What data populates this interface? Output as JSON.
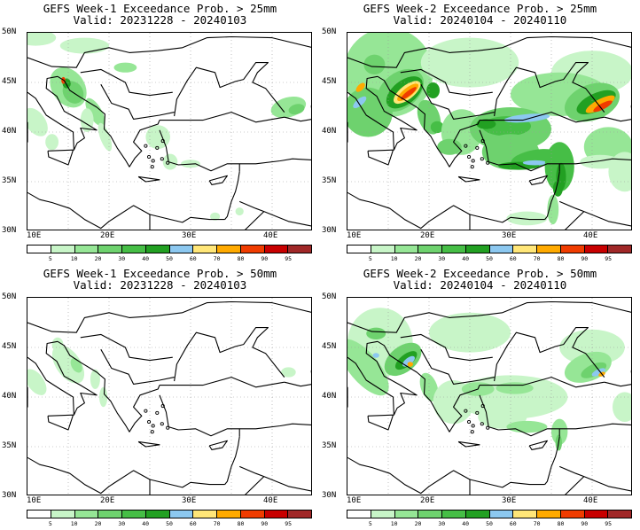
{
  "panels": [
    {
      "line1": "GEFS Week-1 Exceedance Prob. > 25mm",
      "line2": "Valid: 20231228 - 20240103",
      "week": 1,
      "threshold": 25
    },
    {
      "line1": "GEFS Week-2 Exceedance Prob. > 25mm",
      "line2": "Valid: 20240104 - 20240110",
      "week": 2,
      "threshold": 25
    },
    {
      "line1": "GEFS Week-1 Exceedance Prob. > 50mm",
      "line2": "Valid: 20231228 - 20240103",
      "week": 1,
      "threshold": 50
    },
    {
      "line1": "GEFS Week-2 Exceedance Prob. > 50mm",
      "line2": "Valid: 20240104 - 20240110",
      "week": 2,
      "threshold": 50
    }
  ],
  "axes": {
    "y_ticks": [
      "50N",
      "45N",
      "40N",
      "35N",
      "30N"
    ],
    "x_ticks": [
      "10E",
      "20E",
      "30E",
      "40E"
    ]
  },
  "colorbar": {
    "labels": [
      "5",
      "10",
      "20",
      "30",
      "40",
      "50",
      "60",
      "70",
      "80",
      "90",
      "95"
    ],
    "colors": [
      "#ffffff",
      "#c8f5c8",
      "#96e696",
      "#6ed26e",
      "#46be46",
      "#22a022",
      "#8cc8f0",
      "#ffe678",
      "#ffaa00",
      "#f03c00",
      "#c80000",
      "#a02828"
    ]
  }
}
